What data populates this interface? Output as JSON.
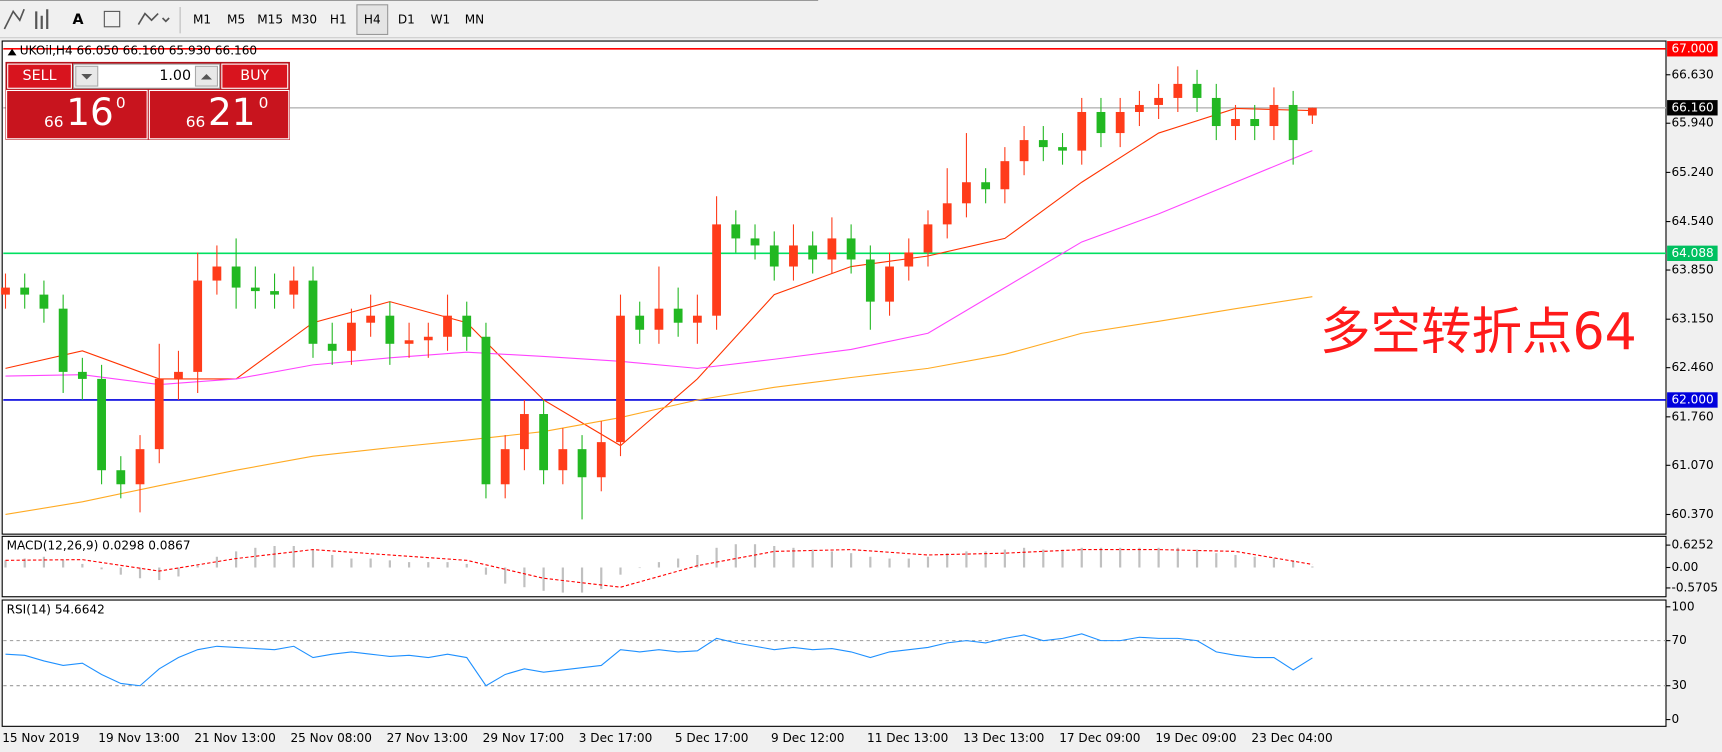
{
  "toolbar": {
    "timeframes": [
      "M1",
      "M5",
      "M15",
      "M30",
      "H1",
      "H4",
      "D1",
      "W1",
      "MN"
    ],
    "active": "H4"
  },
  "trade_panel": {
    "sell": "SELL",
    "buy": "BUY",
    "lot": "1.00",
    "sell_price": {
      "prefix": "66",
      "main": "16",
      "suffix": "0"
    },
    "buy_price": {
      "prefix": "66",
      "main": "21",
      "suffix": "0"
    }
  },
  "chart_data": [
    {
      "type": "candlestick",
      "header": "UKOil,H4 66.050 66.160 65.930 66.160",
      "annotation": "多空转折点64",
      "annotation_color": "#ff1a1a",
      "up_color": "#ff3c1a",
      "down_color": "#22b822",
      "x": [
        "15 Nov 2019",
        null,
        null,
        null,
        null,
        "19 Nov 13:00",
        null,
        null,
        null,
        null,
        "21 Nov 13:00",
        null,
        null,
        null,
        null,
        "25 Nov 08:00",
        null,
        null,
        null,
        null,
        "27 Nov 13:00",
        null,
        null,
        null,
        null,
        "29 Nov 17:00",
        null,
        null,
        null,
        null,
        "3 Dec 17:00",
        null,
        null,
        null,
        null,
        "5 Dec 17:00",
        null,
        null,
        null,
        null,
        "9 Dec 12:00",
        null,
        null,
        null,
        null,
        "11 Dec 13:00",
        null,
        null,
        null,
        null,
        "13 Dec 13:00",
        null,
        null,
        null,
        null,
        "17 Dec 09:00",
        null,
        null,
        null,
        null,
        "19 Dec 09:00",
        null,
        null,
        null,
        null,
        "23 Dec 04:00",
        null,
        null,
        null
      ],
      "open": [
        63.5,
        63.6,
        63.5,
        63.3,
        62.4,
        62.3,
        61.0,
        60.8,
        61.3,
        62.3,
        62.4,
        63.7,
        63.9,
        63.6,
        63.55,
        63.5,
        63.7,
        62.8,
        62.7,
        63.1,
        63.2,
        62.8,
        62.85,
        62.9,
        63.2,
        62.9,
        60.8,
        61.3,
        61.8,
        61.0,
        61.3,
        60.9,
        61.4,
        63.2,
        63.0,
        63.3,
        63.1,
        63.2,
        64.5,
        64.3,
        64.2,
        63.9,
        64.2,
        64.0,
        64.3,
        64.0,
        63.4,
        63.9,
        64.1,
        64.5,
        64.8,
        65.1,
        65.0,
        65.4,
        65.7,
        65.6,
        65.55,
        66.1,
        65.8,
        66.1,
        66.2,
        66.3,
        66.5,
        66.3,
        65.9,
        66.0,
        65.9,
        66.2,
        66.05
      ],
      "high": [
        63.8,
        63.8,
        63.7,
        63.5,
        62.6,
        62.5,
        61.2,
        61.5,
        62.8,
        62.7,
        64.1,
        64.2,
        64.3,
        63.9,
        63.8,
        63.9,
        63.9,
        63.1,
        63.3,
        63.5,
        63.4,
        63.1,
        63.1,
        63.5,
        63.4,
        63.1,
        61.5,
        62.0,
        62.0,
        61.6,
        61.5,
        61.7,
        63.5,
        63.4,
        63.9,
        63.6,
        63.5,
        64.9,
        64.7,
        64.5,
        64.4,
        64.5,
        64.4,
        64.6,
        64.5,
        64.2,
        64.1,
        64.3,
        64.7,
        65.3,
        65.8,
        65.3,
        65.6,
        65.9,
        65.9,
        65.8,
        66.3,
        66.3,
        66.3,
        66.4,
        66.5,
        66.75,
        66.7,
        66.5,
        66.2,
        66.2,
        66.45,
        66.4,
        66.16
      ],
      "low": [
        63.3,
        63.3,
        63.1,
        62.1,
        62.0,
        60.8,
        60.6,
        60.4,
        61.1,
        62.0,
        62.1,
        63.5,
        63.3,
        63.3,
        63.3,
        63.3,
        62.6,
        62.5,
        62.5,
        62.9,
        62.5,
        62.6,
        62.6,
        62.7,
        62.7,
        60.6,
        60.6,
        61.0,
        60.8,
        60.8,
        60.3,
        60.7,
        61.2,
        62.8,
        62.8,
        62.9,
        62.8,
        63.0,
        64.1,
        64.0,
        63.7,
        63.7,
        63.8,
        63.8,
        63.8,
        63.0,
        63.2,
        63.7,
        63.9,
        64.3,
        64.6,
        64.8,
        64.8,
        65.2,
        65.4,
        65.35,
        65.35,
        65.6,
        65.6,
        65.9,
        66.0,
        66.1,
        66.1,
        65.7,
        65.7,
        65.7,
        65.7,
        65.35,
        65.93
      ],
      "close": [
        63.6,
        63.5,
        63.3,
        62.4,
        62.3,
        61.0,
        60.8,
        61.3,
        62.3,
        62.4,
        63.7,
        63.9,
        63.6,
        63.55,
        63.5,
        63.7,
        62.8,
        62.7,
        63.1,
        63.2,
        62.8,
        62.85,
        62.9,
        63.2,
        62.9,
        60.8,
        61.3,
        61.8,
        61.0,
        61.3,
        60.9,
        61.4,
        63.2,
        63.0,
        63.3,
        63.1,
        63.2,
        64.5,
        64.3,
        64.2,
        63.9,
        64.2,
        64.0,
        64.3,
        64.0,
        63.4,
        63.9,
        64.1,
        64.5,
        64.8,
        65.1,
        65.0,
        65.4,
        65.7,
        65.6,
        65.55,
        66.1,
        65.8,
        66.1,
        66.2,
        66.3,
        66.5,
        66.3,
        65.9,
        66.0,
        65.9,
        66.2,
        65.7,
        66.16
      ],
      "lines": [
        {
          "color": "#ff3300",
          "x": [
            0,
            4,
            8,
            12,
            16,
            20,
            24,
            28,
            32,
            36,
            40,
            44,
            48,
            52,
            56,
            60,
            64,
            68
          ],
          "values": [
            62.45,
            62.7,
            62.3,
            62.3,
            63.1,
            63.4,
            63.1,
            62.0,
            61.35,
            62.3,
            63.5,
            63.9,
            64.05,
            64.3,
            65.1,
            65.8,
            66.15,
            66.12
          ]
        },
        {
          "color": "#ff44ff",
          "x": [
            0,
            4,
            8,
            12,
            16,
            20,
            24,
            28,
            32,
            36,
            40,
            44,
            48,
            52,
            56,
            60,
            64,
            68
          ],
          "values": [
            62.34,
            62.36,
            62.22,
            62.3,
            62.5,
            62.6,
            62.68,
            62.62,
            62.55,
            62.45,
            62.58,
            62.72,
            62.95,
            63.6,
            64.25,
            64.65,
            65.1,
            65.55
          ]
        },
        {
          "color": "#ffaa22",
          "x": [
            0,
            4,
            8,
            12,
            16,
            20,
            24,
            28,
            32,
            36,
            40,
            44,
            48,
            52,
            56,
            60,
            64,
            68
          ],
          "values": [
            60.37,
            60.55,
            60.78,
            61.0,
            61.2,
            61.32,
            61.43,
            61.55,
            61.75,
            62.0,
            62.18,
            62.32,
            62.45,
            62.65,
            62.95,
            63.12,
            63.3,
            63.47
          ]
        }
      ],
      "hlines": [
        {
          "value": 67,
          "label": "67.000",
          "color": "#ff0000",
          "box": "#ff0000"
        },
        {
          "value": 66.16,
          "label": "66.160",
          "color": "#c0c0c0",
          "box": "#000000"
        },
        {
          "value": 64.088,
          "label": "64.088",
          "color": "#00e060",
          "box": "#00c060"
        },
        {
          "value": 62,
          "label": "62.000",
          "color": "#0000dd",
          "box": "#0000dd"
        }
      ],
      "ylim": [
        60.09,
        67.11
      ],
      "yticks": [
        {
          "value": 66.63,
          "label": "66.630"
        },
        {
          "value": 65.94,
          "label": "65.940"
        },
        {
          "value": 65.24,
          "label": "65.240"
        },
        {
          "value": 64.54,
          "label": "64.540"
        },
        {
          "value": 63.85,
          "label": "63.850"
        },
        {
          "value": 63.15,
          "label": "63.150"
        },
        {
          "value": 62.46,
          "label": "62.460"
        },
        {
          "value": 61.76,
          "label": "61.760"
        },
        {
          "value": 61.07,
          "label": "61.070"
        },
        {
          "value": 60.37,
          "label": "60.370"
        }
      ]
    },
    {
      "type": "macd",
      "title": "MACD(12,26,9) 0.0298 0.0867",
      "color": "#c0c0c0",
      "values": [
        0.2,
        0.25,
        0.3,
        0.2,
        0.1,
        -0.05,
        -0.2,
        -0.3,
        -0.35,
        -0.25,
        0.05,
        0.3,
        0.45,
        0.55,
        0.6,
        0.6,
        0.5,
        0.35,
        0.25,
        0.25,
        0.2,
        0.15,
        0.15,
        0.15,
        0.1,
        -0.2,
        -0.45,
        -0.55,
        -0.65,
        -0.7,
        -0.7,
        -0.6,
        -0.2,
        0.0,
        0.15,
        0.25,
        0.35,
        0.55,
        0.65,
        0.65,
        0.6,
        0.55,
        0.5,
        0.45,
        0.4,
        0.3,
        0.25,
        0.25,
        0.3,
        0.4,
        0.45,
        0.45,
        0.5,
        0.55,
        0.5,
        0.5,
        0.55,
        0.55,
        0.55,
        0.55,
        0.55,
        0.55,
        0.5,
        0.4,
        0.35,
        0.3,
        0.25,
        0.2,
        0.0298
      ],
      "signal": {
        "color": "#ff0000",
        "x": [
          0,
          4,
          8,
          12,
          16,
          20,
          24,
          28,
          32,
          36,
          40,
          44,
          48,
          52,
          56,
          60,
          64,
          68
        ],
        "values": [
          0.2,
          0.22,
          -0.1,
          0.25,
          0.5,
          0.35,
          0.2,
          -0.3,
          -0.55,
          0.05,
          0.45,
          0.5,
          0.35,
          0.4,
          0.5,
          0.5,
          0.45,
          0.0867
        ]
      },
      "ylim": [
        -0.816,
        0.87
      ],
      "yticks": [
        0.6252,
        {
          "value": 0,
          "label": "0.00"
        },
        -0.5705
      ]
    },
    {
      "type": "line",
      "title": "RSI(14) 54.6642",
      "color": "#1e90ff",
      "values": [
        58,
        57,
        52,
        48,
        50,
        40,
        32,
        30,
        45,
        55,
        62,
        65,
        64,
        63,
        62,
        65,
        55,
        58,
        60,
        58,
        56,
        57,
        55,
        58,
        55,
        30,
        40,
        45,
        42,
        44,
        46,
        48,
        62,
        60,
        62,
        60,
        61,
        72,
        68,
        65,
        62,
        64,
        62,
        63,
        60,
        55,
        60,
        62,
        64,
        68,
        70,
        68,
        72,
        75,
        70,
        72,
        76,
        70,
        70,
        73,
        72,
        72,
        70,
        60,
        57,
        55,
        55,
        44,
        54.6642
      ],
      "levels": [
        70,
        30
      ],
      "ylim": [
        -6,
        106
      ],
      "yticks": [
        100,
        70,
        30,
        0
      ]
    }
  ]
}
